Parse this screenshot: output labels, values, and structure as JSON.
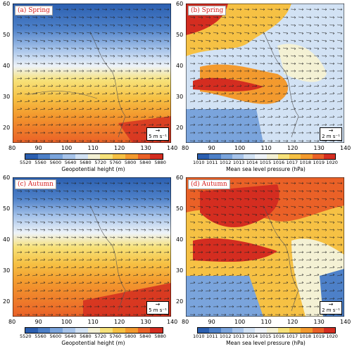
{
  "panels": [
    {
      "label": "(a) Spring",
      "vector_key": "5 m s⁻¹",
      "kind": "geopotential"
    },
    {
      "label": "(b) Spring",
      "vector_key": "2 m s⁻¹",
      "kind": "slp"
    },
    {
      "label": "(c) Autumn",
      "vector_key": "5 m s⁻¹",
      "kind": "geopotential"
    },
    {
      "label": "(d) Autumn",
      "vector_key": "2 m s⁻¹",
      "kind": "slp"
    }
  ],
  "x_ticks": [
    "80",
    "90",
    "100",
    "110",
    "120",
    "130",
    "140"
  ],
  "y_ticks": [
    "60",
    "50",
    "40",
    "30",
    "20"
  ],
  "colorbars": {
    "geopotential": {
      "title": "Geopotential height (m)",
      "ticks": [
        "5520",
        "5560",
        "5600",
        "5640",
        "5680",
        "5720",
        "5760",
        "5800",
        "5840",
        "5880"
      ],
      "colors": [
        "#2b5fb0",
        "#4d80c8",
        "#7aa4dc",
        "#a7c4ea",
        "#d2e2f4",
        "#f4f1d4",
        "#f7e27a",
        "#f6c144",
        "#f39a2e",
        "#ea6127",
        "#d42d20"
      ]
    },
    "slp": {
      "title": "Mean sea level pressure (hPa)",
      "ticks": [
        "1010",
        "1011",
        "1012",
        "1013",
        "1014",
        "1015",
        "1016",
        "1017",
        "1018",
        "1019",
        "1020"
      ],
      "colors": [
        "#2b5fb0",
        "#4d80c8",
        "#7aa4dc",
        "#a7c4ea",
        "#d2e2f4",
        "#eef3f8",
        "#f4f1d4",
        "#f7e27a",
        "#f6c144",
        "#f39a2e",
        "#ea6127",
        "#d42d20"
      ]
    }
  }
}
